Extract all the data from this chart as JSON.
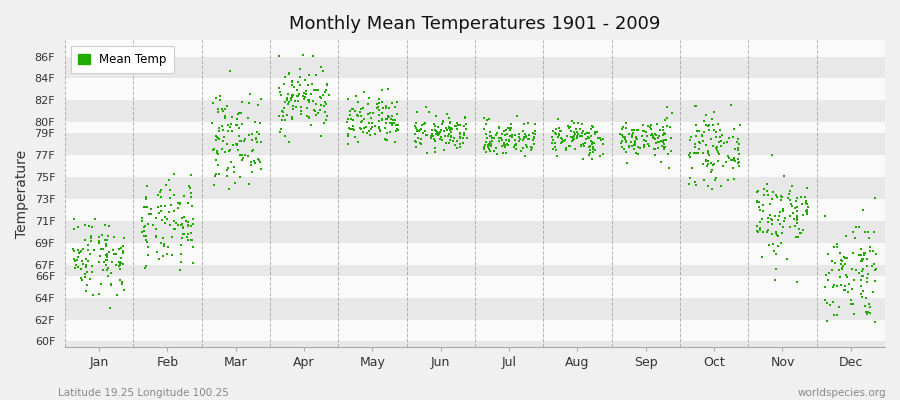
{
  "title": "Monthly Mean Temperatures 1901 - 2009",
  "ylabel": "Temperature",
  "dot_color": "#22aa00",
  "bg_color": "#f0f0f0",
  "stripe_color_light": "#fafafa",
  "stripe_color_dark": "#e8e8e8",
  "grid_color": "#888888",
  "legend_label": "Mean Temp",
  "footer_left": "Latitude 19.25 Longitude 100.25",
  "footer_right": "worldspecies.org",
  "yticks": [
    60,
    62,
    64,
    66,
    67,
    69,
    71,
    73,
    75,
    77,
    79,
    80,
    82,
    84,
    86
  ],
  "ytick_labels": [
    "60F",
    "62F",
    "64F",
    "66F",
    "67F",
    "69F",
    "71F",
    "73F",
    "75F",
    "77F",
    "79F",
    "80F",
    "82F",
    "84F",
    "86F"
  ],
  "ylim": [
    59.5,
    87.5
  ],
  "month_names": [
    "Jan",
    "Feb",
    "Mar",
    "Apr",
    "May",
    "Jun",
    "Jul",
    "Aug",
    "Sep",
    "Oct",
    "Nov",
    "Dec"
  ],
  "monthly_mean_F": [
    67.8,
    70.5,
    78.5,
    82.2,
    80.0,
    79.0,
    78.5,
    78.5,
    78.5,
    77.5,
    71.5,
    66.5
  ],
  "monthly_std_F": [
    1.8,
    2.0,
    2.0,
    1.5,
    1.2,
    0.8,
    0.8,
    0.8,
    0.9,
    1.5,
    2.0,
    2.5
  ],
  "n_years": 109,
  "seed": 42
}
